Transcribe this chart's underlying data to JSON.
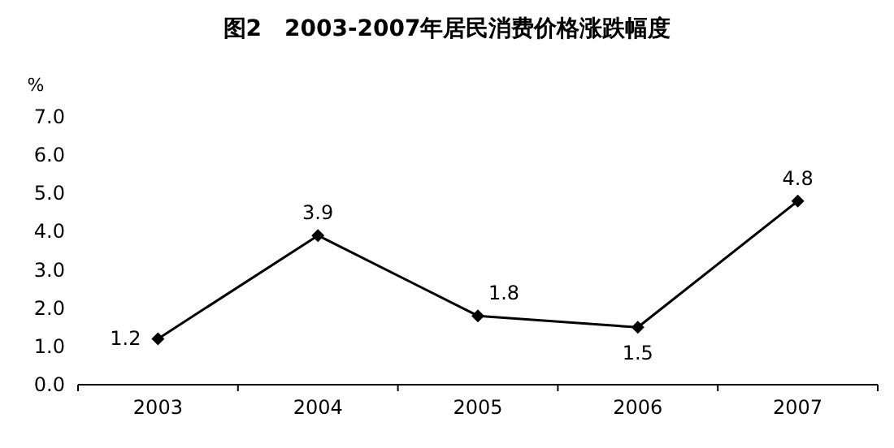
{
  "chart_data": {
    "type": "line",
    "title": "图2　2003-2007年居民消费价格涨跌幅度",
    "ylabel": "%",
    "categories": [
      "2003",
      "2004",
      "2005",
      "2006",
      "2007"
    ],
    "series": [
      {
        "color": "#000000",
        "values": [
          1.2,
          3.9,
          1.8,
          1.5,
          4.8
        ]
      }
    ],
    "ylim": [
      0,
      7
    ],
    "yticks": [
      {
        "value": 0,
        "label": "0.0"
      },
      {
        "value": 1,
        "label": "1.0"
      },
      {
        "value": 2,
        "label": "2.0"
      },
      {
        "value": 3,
        "label": "3.0"
      },
      {
        "value": 4,
        "label": "4.0"
      },
      {
        "value": 5,
        "label": "5.0"
      },
      {
        "value": 6,
        "label": "6.0"
      },
      {
        "value": 7,
        "label": "7.0"
      }
    ],
    "data_labels": true,
    "marker": "diamond",
    "line_style": "solid",
    "grid": false
  }
}
